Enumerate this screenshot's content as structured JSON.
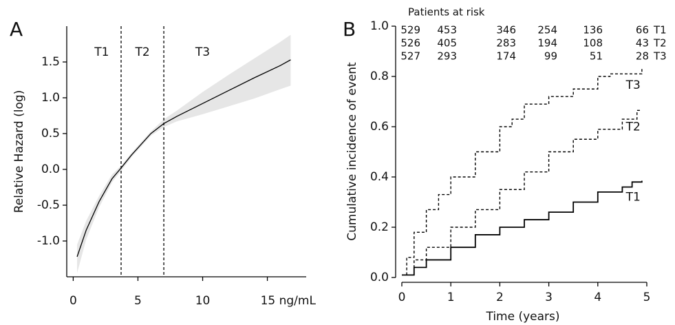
{
  "chart_data": [
    {
      "type": "spline",
      "panel": "A",
      "ylabel": "Relative Hazard (log)",
      "xlim": [
        -0.5,
        18
      ],
      "ylim": [
        -1.5,
        2.0
      ],
      "xticks": [
        0,
        5,
        10,
        {
          "value": 15,
          "label": "15 ng/mL"
        }
      ],
      "yticks": [
        {
          "value": -1,
          "label": "-1.0"
        },
        -0.5,
        {
          "value": 0,
          "label": "0.0"
        },
        0.5,
        {
          "value": 1,
          "label": "1.0"
        },
        1.5
      ],
      "x": [
        0.3,
        1,
        2,
        3,
        3.7,
        4.5,
        5,
        6,
        7,
        8,
        10,
        12,
        14,
        16,
        16.8
      ],
      "values": [
        -1.22,
        -0.85,
        -0.45,
        -0.13,
        0.02,
        0.2,
        0.3,
        0.5,
        0.64,
        0.74,
        0.92,
        1.1,
        1.28,
        1.45,
        1.53
      ],
      "upper": [
        -1.05,
        -0.72,
        -0.37,
        -0.07,
        0.05,
        0.23,
        0.33,
        0.53,
        0.7,
        0.82,
        1.08,
        1.32,
        1.55,
        1.78,
        1.88
      ],
      "lower": [
        -1.45,
        -0.98,
        -0.53,
        -0.18,
        -0.02,
        0.17,
        0.27,
        0.47,
        0.59,
        0.67,
        0.77,
        0.88,
        0.99,
        1.12,
        1.17
      ],
      "color": "#000000",
      "band_color": "#e6e6e6",
      "cutoffs": [
        3.7,
        7.0
      ],
      "regions": [
        "T1",
        "T2",
        "T3"
      ]
    },
    {
      "type": "step",
      "panel": "B",
      "ylabel": "Cumulative incidence of event",
      "xlabel": "Time (years)",
      "xlim": [
        0,
        5
      ],
      "ylim": [
        0,
        1
      ],
      "xticks": [
        0,
        1,
        2,
        3,
        4,
        5
      ],
      "yticks": [
        {
          "value": 0,
          "label": "0.0"
        },
        0.2,
        0.4,
        0.6,
        0.8,
        {
          "value": 1,
          "label": "1.0"
        }
      ],
      "series": [
        {
          "name": "T1",
          "dash": "none",
          "x": [
            0,
            0.25,
            0.5,
            1,
            1.5,
            2,
            2.5,
            3,
            3.5,
            4,
            4.5,
            4.7,
            4.9
          ],
          "values": [
            0.01,
            0.04,
            0.07,
            0.12,
            0.17,
            0.2,
            0.23,
            0.26,
            0.3,
            0.34,
            0.36,
            0.38,
            0.385
          ]
        },
        {
          "name": "T2",
          "dash": "4 3",
          "x": [
            0,
            0.25,
            0.5,
            1,
            1.5,
            2,
            2.5,
            3,
            3.5,
            4,
            4.5,
            4.8,
            4.9
          ],
          "values": [
            0.01,
            0.07,
            0.12,
            0.2,
            0.27,
            0.35,
            0.42,
            0.5,
            0.55,
            0.59,
            0.63,
            0.665,
            0.665
          ]
        },
        {
          "name": "T3",
          "dash": "4 3",
          "x": [
            0,
            0.1,
            0.25,
            0.5,
            0.75,
            1,
            1.5,
            2,
            2.25,
            2.5,
            3,
            3.5,
            4,
            4.25,
            4.5,
            4.8,
            4.9
          ],
          "values": [
            0.01,
            0.08,
            0.18,
            0.27,
            0.33,
            0.4,
            0.5,
            0.6,
            0.63,
            0.69,
            0.72,
            0.75,
            0.8,
            0.81,
            0.81,
            0.81,
            0.83
          ]
        }
      ],
      "at_risk": {
        "title": "Patients at risk",
        "rows": [
          {
            "label": "T1",
            "counts": [
              529,
              453,
              346,
              254,
              136,
              66
            ]
          },
          {
            "label": "T2",
            "counts": [
              526,
              405,
              283,
              194,
              108,
              43
            ]
          },
          {
            "label": "T3",
            "counts": [
              527,
              293,
              174,
              99,
              51,
              28
            ]
          }
        ]
      }
    }
  ]
}
